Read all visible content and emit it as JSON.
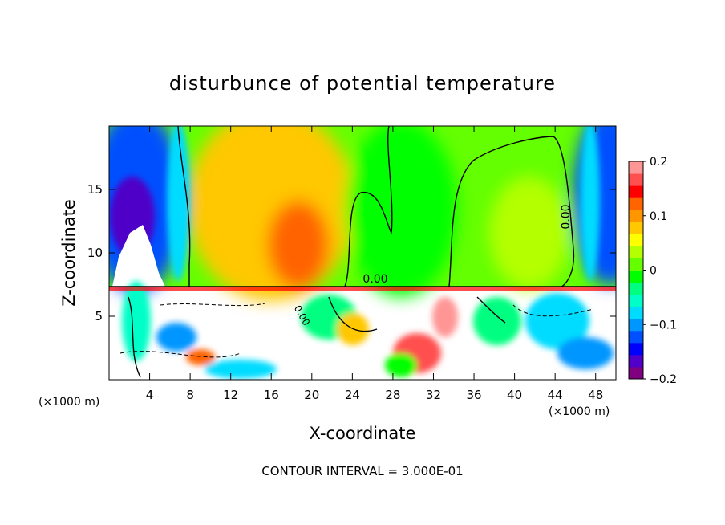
{
  "chart_data": {
    "type": "heatmap",
    "title": "disturbunce of potential temperature",
    "xlabel": "X-coordinate",
    "ylabel": "Z-coordinate",
    "x_unit_left": "(×1000 m)",
    "x_unit_right": "(×1000 m)",
    "footer": "CONTOUR INTERVAL = 3.000E-01",
    "xlim": [
      0,
      50
    ],
    "ylim": [
      0,
      20
    ],
    "x_ticks": [
      4,
      8,
      12,
      16,
      20,
      24,
      28,
      32,
      36,
      40,
      44,
      48
    ],
    "y_ticks": [
      5,
      10,
      15
    ],
    "colorbar": {
      "min": -0.2,
      "max": 0.2,
      "tick_values": [
        0.2,
        0.1,
        0,
        -0.1,
        -0.2
      ],
      "tick_labels": [
        "0.2",
        "0.1",
        "0",
        "−0.1",
        "−0.2"
      ],
      "colors": [
        "#800080",
        "#5000c8",
        "#0000ff",
        "#0050ff",
        "#0096ff",
        "#00dcff",
        "#00ffc8",
        "#00ff80",
        "#00ff00",
        "#64ff00",
        "#b4ff00",
        "#ffff00",
        "#ffc800",
        "#ff9600",
        "#ff6400",
        "#ff0000",
        "#ff5050",
        "#ff9696"
      ]
    },
    "contour_labels": [
      "0.00",
      "0.00",
      "0.00"
    ],
    "lower_layer_top_z": 7.3
  }
}
